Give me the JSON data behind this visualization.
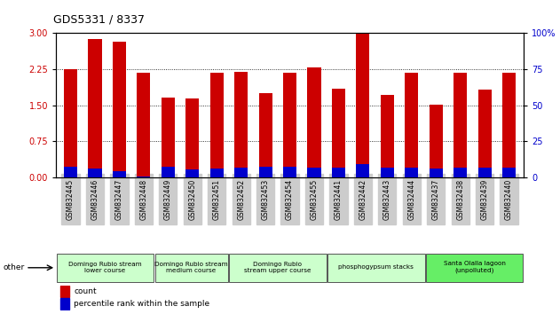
{
  "title": "GDS5331 / 8337",
  "samples": [
    "GSM832445",
    "GSM832446",
    "GSM832447",
    "GSM832448",
    "GSM832449",
    "GSM832450",
    "GSM832451",
    "GSM832452",
    "GSM832453",
    "GSM832454",
    "GSM832455",
    "GSM832441",
    "GSM832442",
    "GSM832443",
    "GSM832444",
    "GSM832437",
    "GSM832438",
    "GSM832439",
    "GSM832440"
  ],
  "count_values": [
    2.25,
    2.88,
    2.82,
    2.17,
    1.65,
    1.64,
    2.18,
    2.19,
    1.75,
    2.17,
    2.28,
    1.84,
    2.99,
    1.72,
    2.18,
    1.52,
    2.18,
    1.82,
    2.17
  ],
  "percentile_values": [
    0.22,
    0.19,
    0.13,
    0.02,
    0.22,
    0.17,
    0.18,
    0.2,
    0.22,
    0.22,
    0.2,
    0.2,
    0.28,
    0.2,
    0.2,
    0.18,
    0.2,
    0.2,
    0.2
  ],
  "count_color": "#cc0000",
  "percentile_color": "#0000cc",
  "ylim_left": [
    0,
    3
  ],
  "ylim_right": [
    0,
    100
  ],
  "yticks_left": [
    0,
    0.75,
    1.5,
    2.25,
    3.0
  ],
  "yticks_right": [
    0,
    25,
    50,
    75,
    100
  ],
  "groups": [
    {
      "label": "Domingo Rubio stream\nlower course",
      "start": 0,
      "end": 3,
      "color": "#ccffcc"
    },
    {
      "label": "Domingo Rubio stream\nmedium course",
      "start": 4,
      "end": 6,
      "color": "#ccffcc"
    },
    {
      "label": "Domingo Rubio\nstream upper course",
      "start": 7,
      "end": 10,
      "color": "#ccffcc"
    },
    {
      "label": "phosphogypsum stacks",
      "start": 11,
      "end": 14,
      "color": "#ccffcc"
    },
    {
      "label": "Santa Olalla lagoon\n(unpolluted)",
      "start": 15,
      "end": 18,
      "color": "#66ee66"
    }
  ],
  "bar_width": 0.55,
  "bg_color": "#ffffff",
  "plot_bg": "#ffffff",
  "other_label": "other",
  "legend_count": "count",
  "legend_percentile": "percentile rank within the sample"
}
